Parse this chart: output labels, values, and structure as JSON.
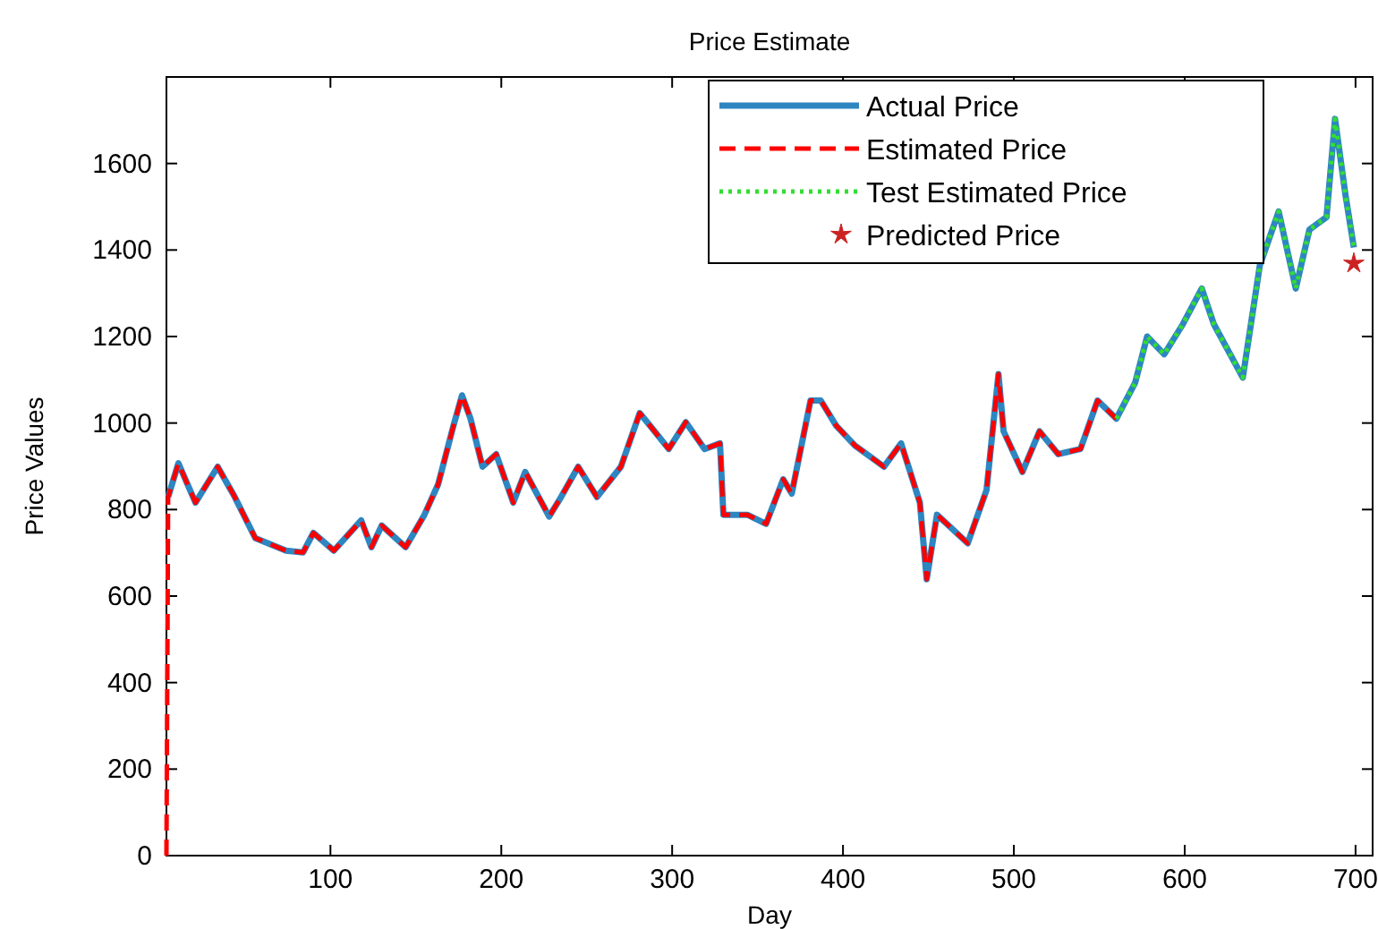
{
  "chart_data": {
    "type": "line",
    "title": "Price Estimate",
    "xlabel": "Day",
    "ylabel": "Price Values",
    "xlim": [
      4,
      710
    ],
    "xticks": [
      100,
      200,
      300,
      400,
      500,
      600,
      700
    ],
    "ylim": [
      0,
      1800
    ],
    "yticks": [
      0,
      200,
      400,
      600,
      800,
      1000,
      1200,
      1400,
      1600
    ],
    "grid": false,
    "legend": "top right",
    "series": [
      {
        "name": "Actual Price",
        "color": "#2e86c1",
        "line_style": "solid",
        "marker": "none",
        "x": [
          5,
          11,
          21,
          34,
          44,
          56,
          74,
          84,
          90,
          102,
          118,
          124,
          130,
          144,
          155,
          163,
          172,
          177,
          182,
          189,
          197,
          207,
          214,
          228,
          235,
          245,
          256,
          270,
          281,
          287,
          298,
          308,
          319,
          328,
          330,
          344,
          355,
          365,
          370,
          381,
          387,
          396,
          407,
          424,
          434,
          445,
          449,
          455,
          473,
          484,
          491,
          494,
          505,
          515,
          526,
          539,
          549,
          560,
          571,
          578,
          588,
          599,
          610,
          617,
          634,
          644,
          655,
          665,
          673,
          683,
          688,
          694,
          699
        ],
        "values": [
          829,
          907,
          816,
          899,
          829,
          734,
          705,
          701,
          746,
          705,
          775,
          713,
          763,
          713,
          788,
          858,
          994,
          1064,
          1010,
          899,
          928,
          816,
          887,
          784,
          829,
          899,
          829,
          899,
          1023,
          994,
          940,
          1002,
          940,
          953,
          788,
          788,
          767,
          870,
          837,
          1052,
          1052,
          994,
          948,
          899,
          953,
          816,
          639,
          788,
          722,
          845,
          1113,
          981,
          887,
          981,
          928,
          940,
          1052,
          1010,
          1093,
          1200,
          1159,
          1229,
          1311,
          1229,
          1105,
          1365,
          1489,
          1311,
          1447,
          1476,
          1703,
          1530,
          1406
        ]
      },
      {
        "name": "Estimated Price",
        "color": "#ff0000",
        "line_style": "dashed",
        "marker": "none",
        "x": [
          4,
          5,
          11,
          21,
          34,
          44,
          56,
          74,
          84,
          90,
          102,
          118,
          124,
          130,
          144,
          155,
          163,
          172,
          177,
          182,
          189,
          197,
          207,
          214,
          228,
          235,
          245,
          256,
          270,
          281,
          287,
          298,
          308,
          319,
          328,
          330,
          344,
          355,
          365,
          370,
          381,
          387,
          396,
          407,
          424,
          434,
          445,
          449,
          455,
          473,
          484,
          491,
          494,
          505,
          515,
          526,
          539,
          549,
          560
        ],
        "values": [
          0,
          829,
          907,
          816,
          899,
          829,
          734,
          705,
          701,
          746,
          705,
          775,
          713,
          763,
          713,
          788,
          858,
          994,
          1064,
          1010,
          899,
          928,
          816,
          887,
          784,
          829,
          899,
          829,
          899,
          1023,
          994,
          940,
          1002,
          940,
          953,
          788,
          788,
          767,
          870,
          837,
          1052,
          1052,
          994,
          948,
          899,
          953,
          816,
          639,
          788,
          722,
          845,
          1113,
          981,
          887,
          981,
          928,
          940,
          1052,
          1010
        ]
      },
      {
        "name": "Test Estimated Price",
        "color": "#33dd33",
        "line_style": "dotted",
        "marker": "none",
        "x": [
          560,
          571,
          578,
          588,
          599,
          610,
          617,
          634,
          644,
          655,
          665,
          673,
          683,
          688,
          694,
          699
        ],
        "values": [
          1010,
          1093,
          1200,
          1159,
          1229,
          1311,
          1229,
          1105,
          1365,
          1489,
          1311,
          1447,
          1476,
          1703,
          1530,
          1406
        ]
      },
      {
        "name": "Predicted Price",
        "type": "scatter",
        "color": "#cc2222",
        "marker": "star",
        "x": [
          699
        ],
        "values": [
          1369
        ]
      }
    ]
  }
}
